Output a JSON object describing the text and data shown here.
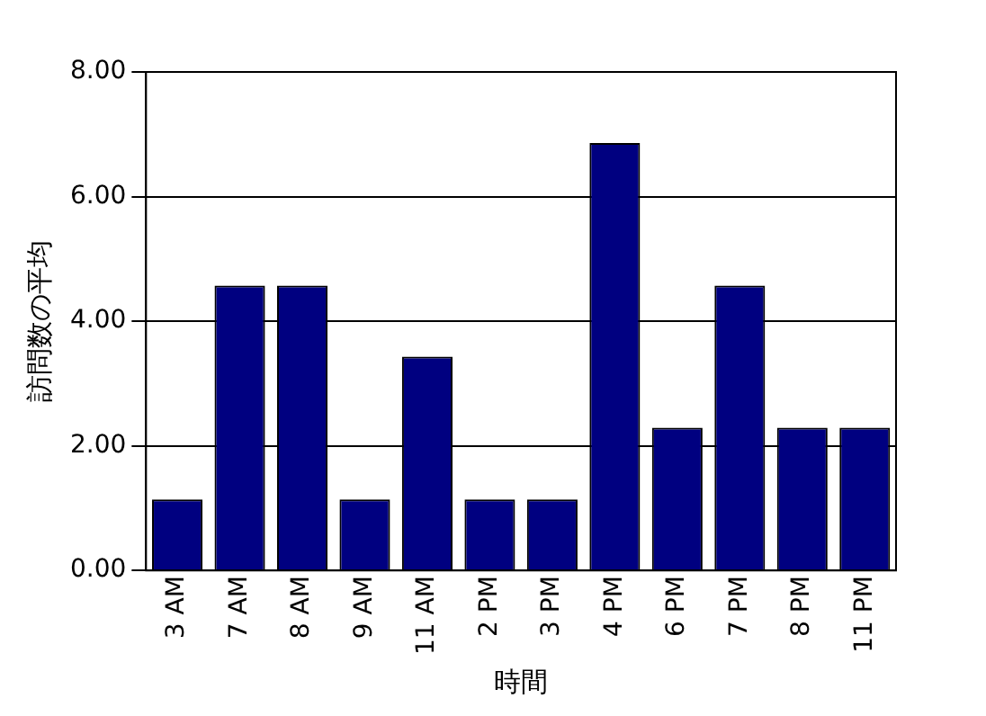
{
  "chart_data": {
    "type": "bar",
    "xlabel": "時間",
    "ylabel": "訪問数の平均",
    "categories": [
      "3 AM",
      "7 AM",
      "8 AM",
      "9 AM",
      "11 AM",
      "2 PM",
      "3 PM",
      "4 PM",
      "6 PM",
      "7 PM",
      "8 PM",
      "11 PM"
    ],
    "values": [
      1.14,
      4.57,
      4.57,
      1.14,
      3.43,
      1.14,
      1.14,
      6.86,
      2.29,
      4.57,
      2.29,
      2.29
    ],
    "color": "#000080",
    "ylim": [
      0,
      8
    ],
    "yticks": [
      {
        "value": 0,
        "label": "0.00"
      },
      {
        "value": 2,
        "label": "2.00"
      },
      {
        "value": 4,
        "label": "4.00"
      },
      {
        "value": 6,
        "label": "6.00"
      },
      {
        "value": 8,
        "label": "8.00"
      }
    ],
    "grid": "y",
    "legend": false
  }
}
